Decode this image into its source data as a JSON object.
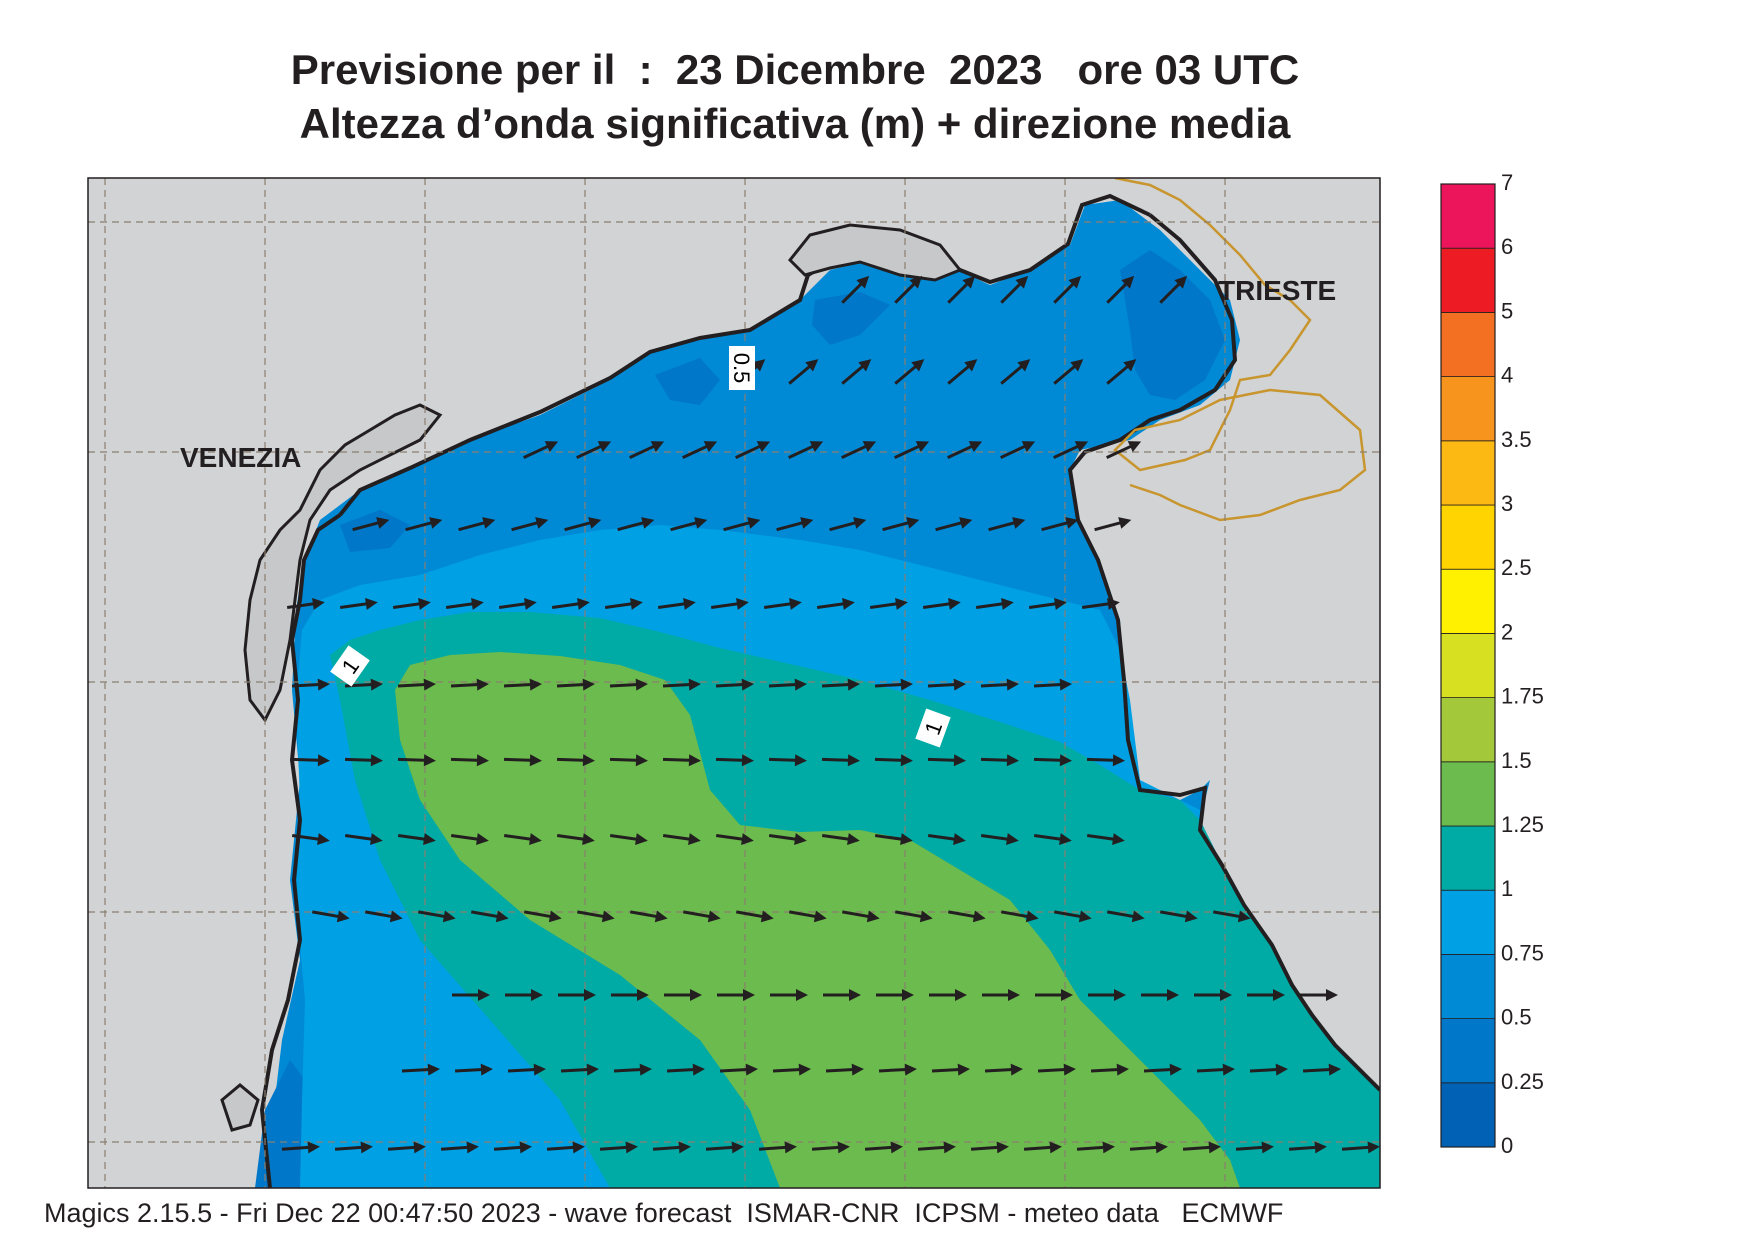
{
  "title": {
    "line1": "Previsione per il  :  23 Dicembre  2023   ore 03 UTC",
    "line2": "Altezza d’onda significativa (m) + direzione media"
  },
  "footer": "Magics 2.15.5 - Fri Dec 22 00:47:50 2023 - wave forecast  ISMAR-CNR  ICPSM - meteo data   ECMWF",
  "cities": [
    {
      "name": "VENEZIA"
    },
    {
      "name": "TRIESTE"
    }
  ],
  "contour_labels": [
    "0.5",
    "1",
    "1"
  ],
  "colorbar": {
    "levels": [
      "0",
      "0.25",
      "0.5",
      "0.75",
      "1",
      "1.25",
      "1.5",
      "1.75",
      "2",
      "2.5",
      "3",
      "3.5",
      "4",
      "5",
      "6",
      "7"
    ],
    "colors": [
      "#0061b5",
      "#0077c8",
      "#008ad6",
      "#00a0e4",
      "#00aaa5",
      "#6cbb4e",
      "#a3c93a",
      "#d7e021",
      "#fff100",
      "#ffd400",
      "#fdb913",
      "#f7941d",
      "#f36f21",
      "#ed1c24",
      "#ec145b"
    ]
  },
  "colors": {
    "land": "#d1d3d4",
    "coast": "#231f20",
    "border": "#c8952e",
    "grid": "#8a7f70",
    "arrow": "#231f20"
  },
  "icons": {
    "arrow": "wave-direction-arrow"
  }
}
